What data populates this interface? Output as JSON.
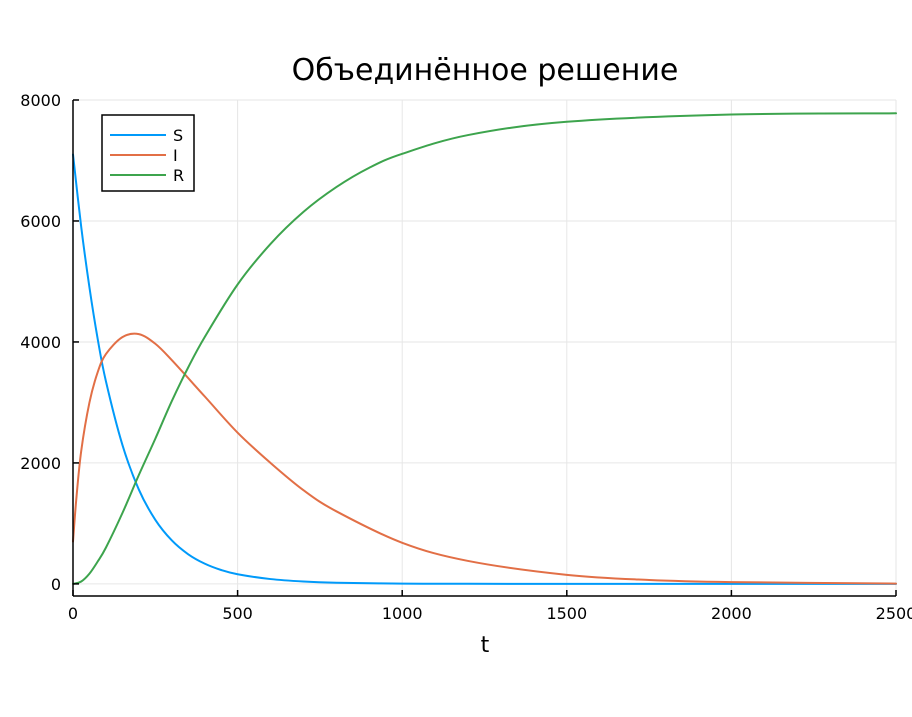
{
  "chart_data": {
    "type": "line",
    "title": "Объединённое решение",
    "xlabel": "t",
    "ylabel": "",
    "xlim": [
      0,
      2500
    ],
    "ylim": [
      -200,
      8000
    ],
    "xticks": [
      0,
      500,
      1000,
      1500,
      2000,
      2500
    ],
    "xtick_labels": [
      "0",
      "500",
      "1000",
      "1500",
      "2000",
      "2500"
    ],
    "yticks": [
      0,
      2000,
      4000,
      6000,
      8000
    ],
    "ytick_labels": [
      "0",
      "2000",
      "4000",
      "6000",
      "8000"
    ],
    "grid": true,
    "legend_position": "top-left",
    "series": [
      {
        "name": "S",
        "color": "#009AFA",
        "x": [
          0,
          25,
          50,
          75,
          100,
          150,
          200,
          250,
          300,
          350,
          400,
          450,
          500,
          600,
          700,
          800,
          1000,
          1200,
          1500,
          2000,
          2500
        ],
        "y": [
          7100,
          5900,
          4900,
          4050,
          3350,
          2300,
          1560,
          1060,
          720,
          490,
          335,
          230,
          160,
          80,
          40,
          20,
          5,
          2,
          0,
          0,
          0
        ]
      },
      {
        "name": "I",
        "color": "#E26F46",
        "x": [
          0,
          10,
          25,
          50,
          75,
          100,
          150,
          200,
          250,
          300,
          400,
          500,
          600,
          700,
          800,
          1000,
          1200,
          1500,
          1750,
          2000,
          2500
        ],
        "y": [
          700,
          1400,
          2200,
          3000,
          3500,
          3800,
          4080,
          4130,
          3970,
          3700,
          3100,
          2500,
          2000,
          1550,
          1200,
          680,
          380,
          150,
          65,
          30,
          5
        ]
      },
      {
        "name": "R",
        "color": "#3DA44D",
        "x": [
          0,
          25,
          50,
          75,
          100,
          150,
          200,
          250,
          300,
          350,
          400,
          500,
          600,
          700,
          800,
          900,
          1000,
          1200,
          1500,
          2000,
          2500
        ],
        "y": [
          0,
          40,
          170,
          370,
          600,
          1170,
          1800,
          2400,
          3020,
          3580,
          4080,
          4950,
          5620,
          6150,
          6560,
          6880,
          7110,
          7420,
          7640,
          7760,
          7780
        ]
      }
    ]
  }
}
